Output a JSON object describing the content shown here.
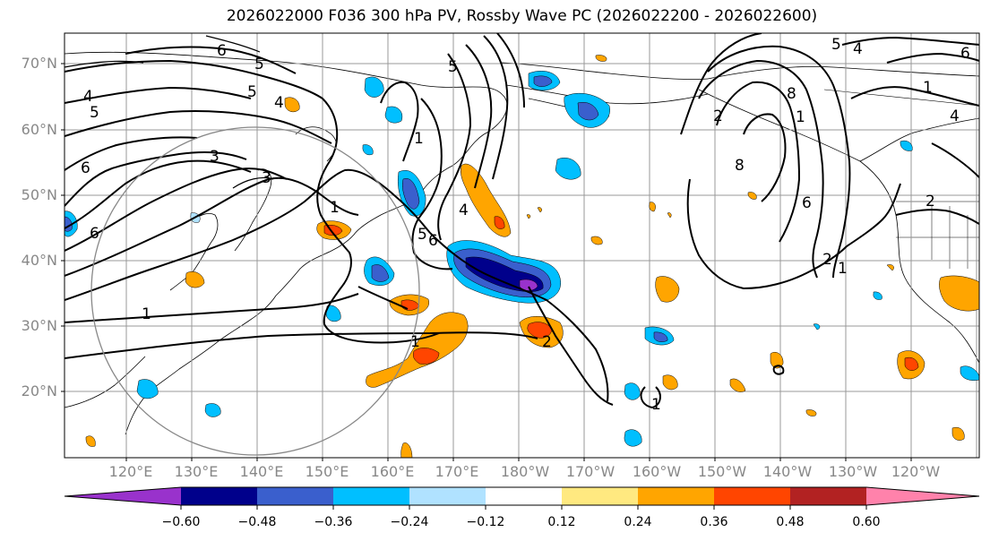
{
  "title": "2026022000 F036 300 hPa PV, Rossby Wave PC (2026022200 - 2026022600)",
  "lat_labels": [
    "70°N",
    "60°N",
    "50°N",
    "40°N",
    "30°N",
    "20°N"
  ],
  "lon_labels": [
    "120°E",
    "130°E",
    "140°E",
    "150°E",
    "160°E",
    "170°E",
    "180°W",
    "170°W",
    "160°W",
    "150°W",
    "140°W",
    "130°W",
    "120°W"
  ],
  "contour_labels": [
    "6",
    "5",
    "5",
    "4",
    "5",
    "4",
    "3",
    "3",
    "6",
    "1",
    "5",
    "6",
    "1",
    "1",
    "2",
    "5",
    "4",
    "6",
    "2",
    "8",
    "1",
    "8",
    "6",
    "2",
    "1",
    "4",
    "1",
    "6",
    "4",
    "2",
    "1",
    "5",
    "1"
  ],
  "colorbar": {
    "tick_labels": [
      "−0.60",
      "−0.48",
      "−0.36",
      "−0.24",
      "−0.12",
      "0.12",
      "0.24",
      "0.36",
      "0.48",
      "0.60"
    ],
    "bin_colors": [
      "#9932cc",
      "#00008b",
      "#3a5fcd",
      "#00bfff",
      "#b0e2ff",
      "#ffffff",
      "#ffe980",
      "#ffa500",
      "#ff4500",
      "#b22222",
      "#ff82ab"
    ]
  }
}
